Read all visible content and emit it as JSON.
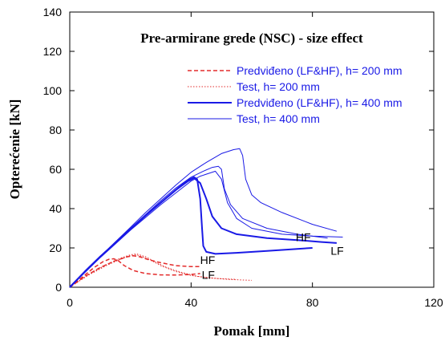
{
  "chart_data": {
    "type": "line",
    "title": "Pre-armirane grede (NSC) - size effect",
    "xlabel": "Pomak [mm]",
    "ylabel": "Opterećenie [kN]",
    "xlim": [
      0,
      120
    ],
    "ylim": [
      0,
      140
    ],
    "x_ticks": [
      "0",
      "40",
      "80",
      "120"
    ],
    "y_ticks": [
      "0",
      "20",
      "40",
      "60",
      "80",
      "100",
      "120",
      "140"
    ],
    "grid": false,
    "legend_placement": "upper-right",
    "colors": {
      "red": "#e32b2b",
      "blue": "#1a1ae6"
    },
    "series": [
      {
        "name": "Predviđeno (LF&HF), h= 200 mm",
        "color": "#e32b2b",
        "style": "dashed",
        "width": 1.5,
        "lines": [
          [
            [
              0,
              0
            ],
            [
              4,
              5
            ],
            [
              8,
              10
            ],
            [
              11,
              13
            ],
            [
              13,
              14.3
            ],
            [
              14.5,
              14.5
            ],
            [
              16,
              13.5
            ],
            [
              18,
              11
            ],
            [
              21,
              8.5
            ],
            [
              25,
              7
            ],
            [
              30,
              6.3
            ],
            [
              35,
              6.2
            ],
            [
              40,
              6.5
            ],
            [
              43,
              7
            ]
          ],
          [
            [
              0,
              0
            ],
            [
              5,
              5.5
            ],
            [
              10,
              10
            ],
            [
              15,
              13.5
            ],
            [
              19,
              15.5
            ],
            [
              21,
              16
            ],
            [
              23,
              15.5
            ],
            [
              26,
              14
            ],
            [
              30,
              12.5
            ],
            [
              35,
              11
            ],
            [
              40,
              10.5
            ],
            [
              43,
              10.5
            ]
          ]
        ]
      },
      {
        "name": "Test, h= 200 mm",
        "color": "#e32b2b",
        "style": "dotted",
        "width": 1,
        "lines": [
          [
            [
              0,
              0
            ],
            [
              6,
              6
            ],
            [
              12,
              11
            ],
            [
              17,
              14.5
            ],
            [
              20,
              16
            ],
            [
              22,
              16.5
            ],
            [
              24,
              15.5
            ],
            [
              27,
              13.5
            ],
            [
              30,
              11
            ],
            [
              35,
              8
            ],
            [
              40,
              6
            ],
            [
              45,
              5
            ],
            [
              52,
              4
            ],
            [
              60,
              3.5
            ]
          ],
          [
            [
              0,
              0
            ],
            [
              6,
              6.3
            ],
            [
              12,
              11.5
            ],
            [
              17,
              15
            ],
            [
              20,
              16.5
            ],
            [
              22,
              17
            ],
            [
              25,
              15.5
            ],
            [
              28,
              13
            ],
            [
              32,
              10
            ],
            [
              37,
              7.5
            ],
            [
              42,
              5.5
            ],
            [
              48,
              4.5
            ],
            [
              55,
              4
            ]
          ]
        ]
      },
      {
        "name": "Predviđeno (LF&HF), h= 400 mm",
        "color": "#1a1ae6",
        "style": "solid",
        "width": 2,
        "lines": [
          [
            [
              0,
              0
            ],
            [
              5,
              8
            ],
            [
              10,
              15.5
            ],
            [
              15,
              22.5
            ],
            [
              20,
              29.5
            ],
            [
              25,
              36.5
            ],
            [
              30,
              43
            ],
            [
              35,
              49.5
            ],
            [
              39,
              54.5
            ],
            [
              41,
              56
            ],
            [
              42,
              55
            ],
            [
              43,
              45
            ],
            [
              43.6,
              30
            ],
            [
              44,
              21
            ],
            [
              45,
              18
            ],
            [
              48,
              17
            ],
            [
              55,
              17.5
            ],
            [
              65,
              18.5
            ],
            [
              75,
              19.5
            ],
            [
              80,
              20
            ]
          ],
          [
            [
              0,
              0
            ],
            [
              5,
              8
            ],
            [
              10,
              15.5
            ],
            [
              15,
              22.5
            ],
            [
              20,
              29.5
            ],
            [
              25,
              36.5
            ],
            [
              30,
              43
            ],
            [
              35,
              49.5
            ],
            [
              39,
              54
            ],
            [
              41,
              55.5
            ],
            [
              43,
              53
            ],
            [
              45,
              45
            ],
            [
              47,
              36
            ],
            [
              50,
              30
            ],
            [
              55,
              27
            ],
            [
              65,
              25
            ],
            [
              75,
              24
            ],
            [
              83,
              23
            ],
            [
              88,
              22.5
            ]
          ]
        ]
      },
      {
        "name": "Test, h= 400 mm",
        "color": "#1a1ae6",
        "style": "solid",
        "width": 1,
        "lines": [
          [
            [
              0,
              0
            ],
            [
              5,
              7.5
            ],
            [
              10,
              15
            ],
            [
              15,
              22
            ],
            [
              20,
              29
            ],
            [
              25,
              35.5
            ],
            [
              30,
              42
            ],
            [
              35,
              48
            ],
            [
              40,
              54
            ],
            [
              43,
              56.5
            ],
            [
              46,
              58
            ],
            [
              48,
              59
            ],
            [
              50,
              55
            ],
            [
              52,
              43
            ],
            [
              55,
              35
            ],
            [
              60,
              30
            ],
            [
              70,
              27
            ],
            [
              80,
              26
            ],
            [
              90,
              25.5
            ]
          ],
          [
            [
              0,
              0
            ],
            [
              5,
              8
            ],
            [
              10,
              15.5
            ],
            [
              15,
              23
            ],
            [
              20,
              30
            ],
            [
              25,
              37
            ],
            [
              30,
              44
            ],
            [
              35,
              50.5
            ],
            [
              40,
              56
            ],
            [
              44,
              59
            ],
            [
              47,
              61
            ],
            [
              49,
              61.5
            ],
            [
              50,
              60
            ],
            [
              51,
              50
            ],
            [
              53,
              42
            ],
            [
              57,
              35
            ],
            [
              65,
              30
            ],
            [
              75,
              27
            ],
            [
              85,
              25
            ]
          ],
          [
            [
              0,
              0
            ],
            [
              5,
              8
            ],
            [
              10,
              15.5
            ],
            [
              15,
              23
            ],
            [
              20,
              30.5
            ],
            [
              25,
              38
            ],
            [
              30,
              45
            ],
            [
              35,
              52
            ],
            [
              40,
              58.5
            ],
            [
              45,
              63.5
            ],
            [
              50,
              68
            ],
            [
              54,
              70
            ],
            [
              56,
              70.5
            ],
            [
              57,
              67
            ],
            [
              58,
              55
            ],
            [
              60,
              47
            ],
            [
              63,
              43
            ],
            [
              70,
              38
            ],
            [
              80,
              32
            ],
            [
              88,
              28.5
            ]
          ]
        ]
      }
    ],
    "annotations": [
      {
        "text": "HF",
        "x": 43,
        "y": 11.8
      },
      {
        "text": "LF",
        "x": 43.5,
        "y": 4.3
      },
      {
        "text": "HF",
        "x": 74.5,
        "y": 23.5
      },
      {
        "text": "LF",
        "x": 86,
        "y": 16.5
      }
    ]
  }
}
